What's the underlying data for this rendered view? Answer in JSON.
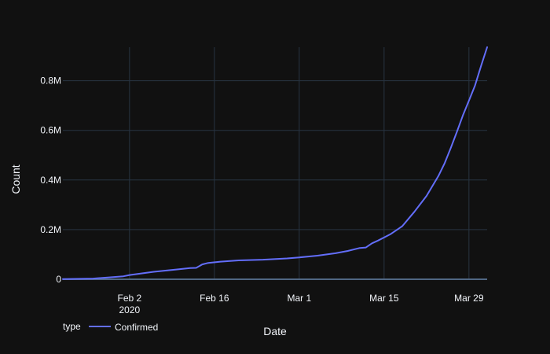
{
  "chart_data": {
    "type": "line",
    "xlabel": "Date",
    "ylabel": "Count",
    "x_range": [
      "2020-01-22",
      "2020-04-01"
    ],
    "ylim": [
      0,
      935000
    ],
    "grid": true,
    "legend": {
      "title": "type",
      "placement": "bottom-left"
    },
    "x_ticks": [
      {
        "date": "2020-02-02",
        "label": "Feb 2",
        "sublabel": "2020"
      },
      {
        "date": "2020-02-16",
        "label": "Feb 16",
        "sublabel": ""
      },
      {
        "date": "2020-03-01",
        "label": "Mar 1",
        "sublabel": ""
      },
      {
        "date": "2020-03-15",
        "label": "Mar 15",
        "sublabel": ""
      },
      {
        "date": "2020-03-29",
        "label": "Mar 29",
        "sublabel": ""
      }
    ],
    "y_ticks": [
      {
        "value": 0,
        "label": "0"
      },
      {
        "value": 200000,
        "label": "0.2M"
      },
      {
        "value": 400000,
        "label": "0.4M"
      },
      {
        "value": 600000,
        "label": "0.6M"
      },
      {
        "value": 800000,
        "label": "0.8M"
      }
    ],
    "series": [
      {
        "name": "Confirmed",
        "color": "#636efa",
        "x": [
          "2020-01-22",
          "2020-01-27",
          "2020-02-01",
          "2020-02-02",
          "2020-02-06",
          "2020-02-10",
          "2020-02-12",
          "2020-02-13",
          "2020-02-14",
          "2020-02-15",
          "2020-02-17",
          "2020-02-20",
          "2020-02-24",
          "2020-02-28",
          "2020-03-01",
          "2020-03-04",
          "2020-03-07",
          "2020-03-09",
          "2020-03-11",
          "2020-03-12",
          "2020-03-13",
          "2020-03-14",
          "2020-03-16",
          "2020-03-18",
          "2020-03-20",
          "2020-03-22",
          "2020-03-24",
          "2020-03-25",
          "2020-03-26",
          "2020-03-27",
          "2020-03-28",
          "2020-03-29",
          "2020-03-30",
          "2020-03-31",
          "2020-04-01"
        ],
        "values": [
          555,
          2900,
          12000,
          17000,
          30000,
          40000,
          45000,
          46000,
          60000,
          66000,
          71000,
          76000,
          79000,
          84000,
          88000,
          95000,
          105000,
          114000,
          126000,
          128000,
          145000,
          156000,
          181000,
          214000,
          272000,
          336000,
          418000,
          468000,
          529000,
          593000,
          660000,
          720000,
          781000,
          860000,
          935000
        ]
      }
    ]
  }
}
